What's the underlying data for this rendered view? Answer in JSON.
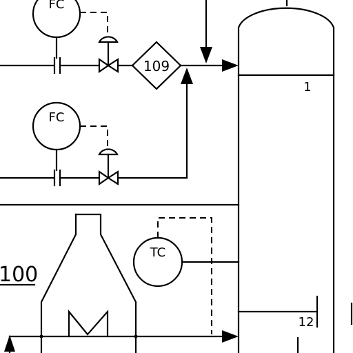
{
  "instruments": {
    "fc_top": "FC",
    "fc_bottom": "FC",
    "tc": "TC"
  },
  "mixer_tag": "109",
  "furnace_tag": "100",
  "column": {
    "tray_top": "1",
    "tray_side": "12"
  }
}
